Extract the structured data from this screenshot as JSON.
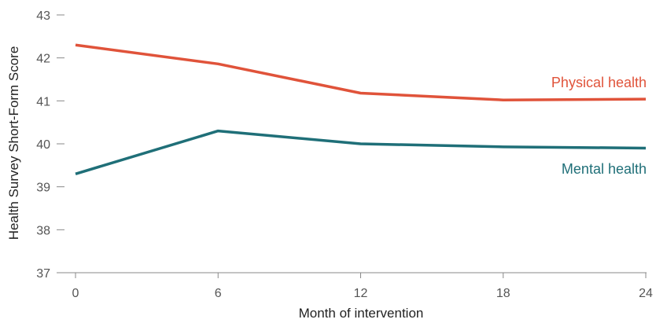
{
  "chart_data": {
    "type": "line",
    "xlabel": "Month of intervention",
    "ylabel": "Health Survey Short-Form Score",
    "x": [
      0,
      6,
      12,
      18,
      24
    ],
    "xticks": [
      "0",
      "6",
      "12",
      "18",
      "24"
    ],
    "yticks": [
      "37",
      "38",
      "39",
      "40",
      "41",
      "42",
      "43"
    ],
    "xlim": [
      0,
      24
    ],
    "ylim": [
      37,
      43
    ],
    "grid": false,
    "series": [
      {
        "name": "Physical health",
        "color": "#e0533a",
        "values": [
          42.3,
          41.86,
          41.18,
          41.02,
          41.04
        ]
      },
      {
        "name": "Mental health",
        "color": "#1f6f78",
        "values": [
          39.3,
          40.3,
          40.0,
          39.93,
          39.9
        ]
      }
    ]
  }
}
